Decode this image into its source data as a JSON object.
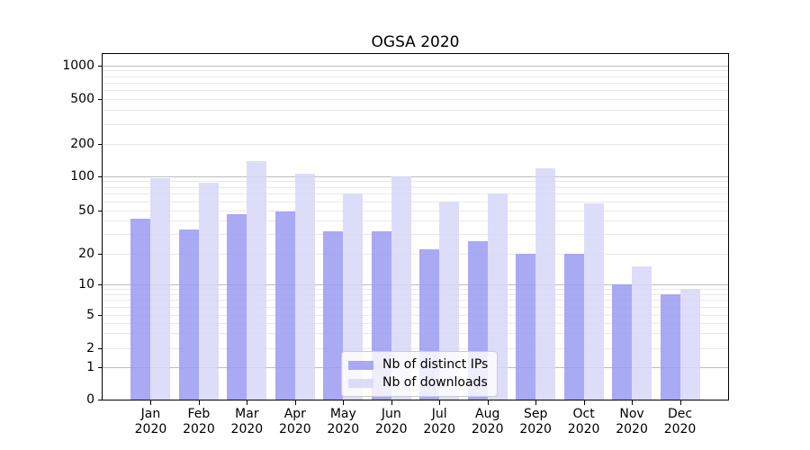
{
  "chart_data": {
    "type": "bar",
    "title": "OGSA 2020",
    "categories": [
      {
        "label": "Jan",
        "year": "2020"
      },
      {
        "label": "Feb",
        "year": "2020"
      },
      {
        "label": "Mar",
        "year": "2020"
      },
      {
        "label": "Apr",
        "year": "2020"
      },
      {
        "label": "May",
        "year": "2020"
      },
      {
        "label": "Jun",
        "year": "2020"
      },
      {
        "label": "Jul",
        "year": "2020"
      },
      {
        "label": "Aug",
        "year": "2020"
      },
      {
        "label": "Sep",
        "year": "2020"
      },
      {
        "label": "Oct",
        "year": "2020"
      },
      {
        "label": "Nov",
        "year": "2020"
      },
      {
        "label": "Dec",
        "year": "2020"
      }
    ],
    "series": [
      {
        "name": "Nb of distinct IPs",
        "color": "#9a9af2",
        "values": [
          42,
          33,
          46,
          49,
          32,
          32,
          22,
          26,
          20,
          20,
          10,
          8
        ]
      },
      {
        "name": "Nb of downloads",
        "color": "#d7d7f8",
        "values": [
          96,
          87,
          138,
          106,
          70,
          100,
          60,
          70,
          118,
          57,
          15,
          9
        ]
      }
    ],
    "y_axis": {
      "scale": "symlog",
      "ticks": [
        0,
        1,
        2,
        5,
        10,
        20,
        50,
        100,
        200,
        500,
        1000
      ],
      "range": [
        0,
        1270
      ]
    },
    "grid": {
      "major_values": [
        1,
        10,
        100,
        1000
      ],
      "minor_values": [
        2,
        3,
        4,
        5,
        6,
        7,
        8,
        9,
        20,
        30,
        40,
        50,
        60,
        70,
        80,
        90,
        200,
        300,
        400,
        500,
        600,
        700,
        800,
        900
      ],
      "major_color": "#bdbdbd",
      "minor_color": "#e9e9e9"
    },
    "legend": {
      "position": "lower-center-inside",
      "background": "rgba(255,255,255,0.8)",
      "border_color": "#cccccc"
    }
  }
}
